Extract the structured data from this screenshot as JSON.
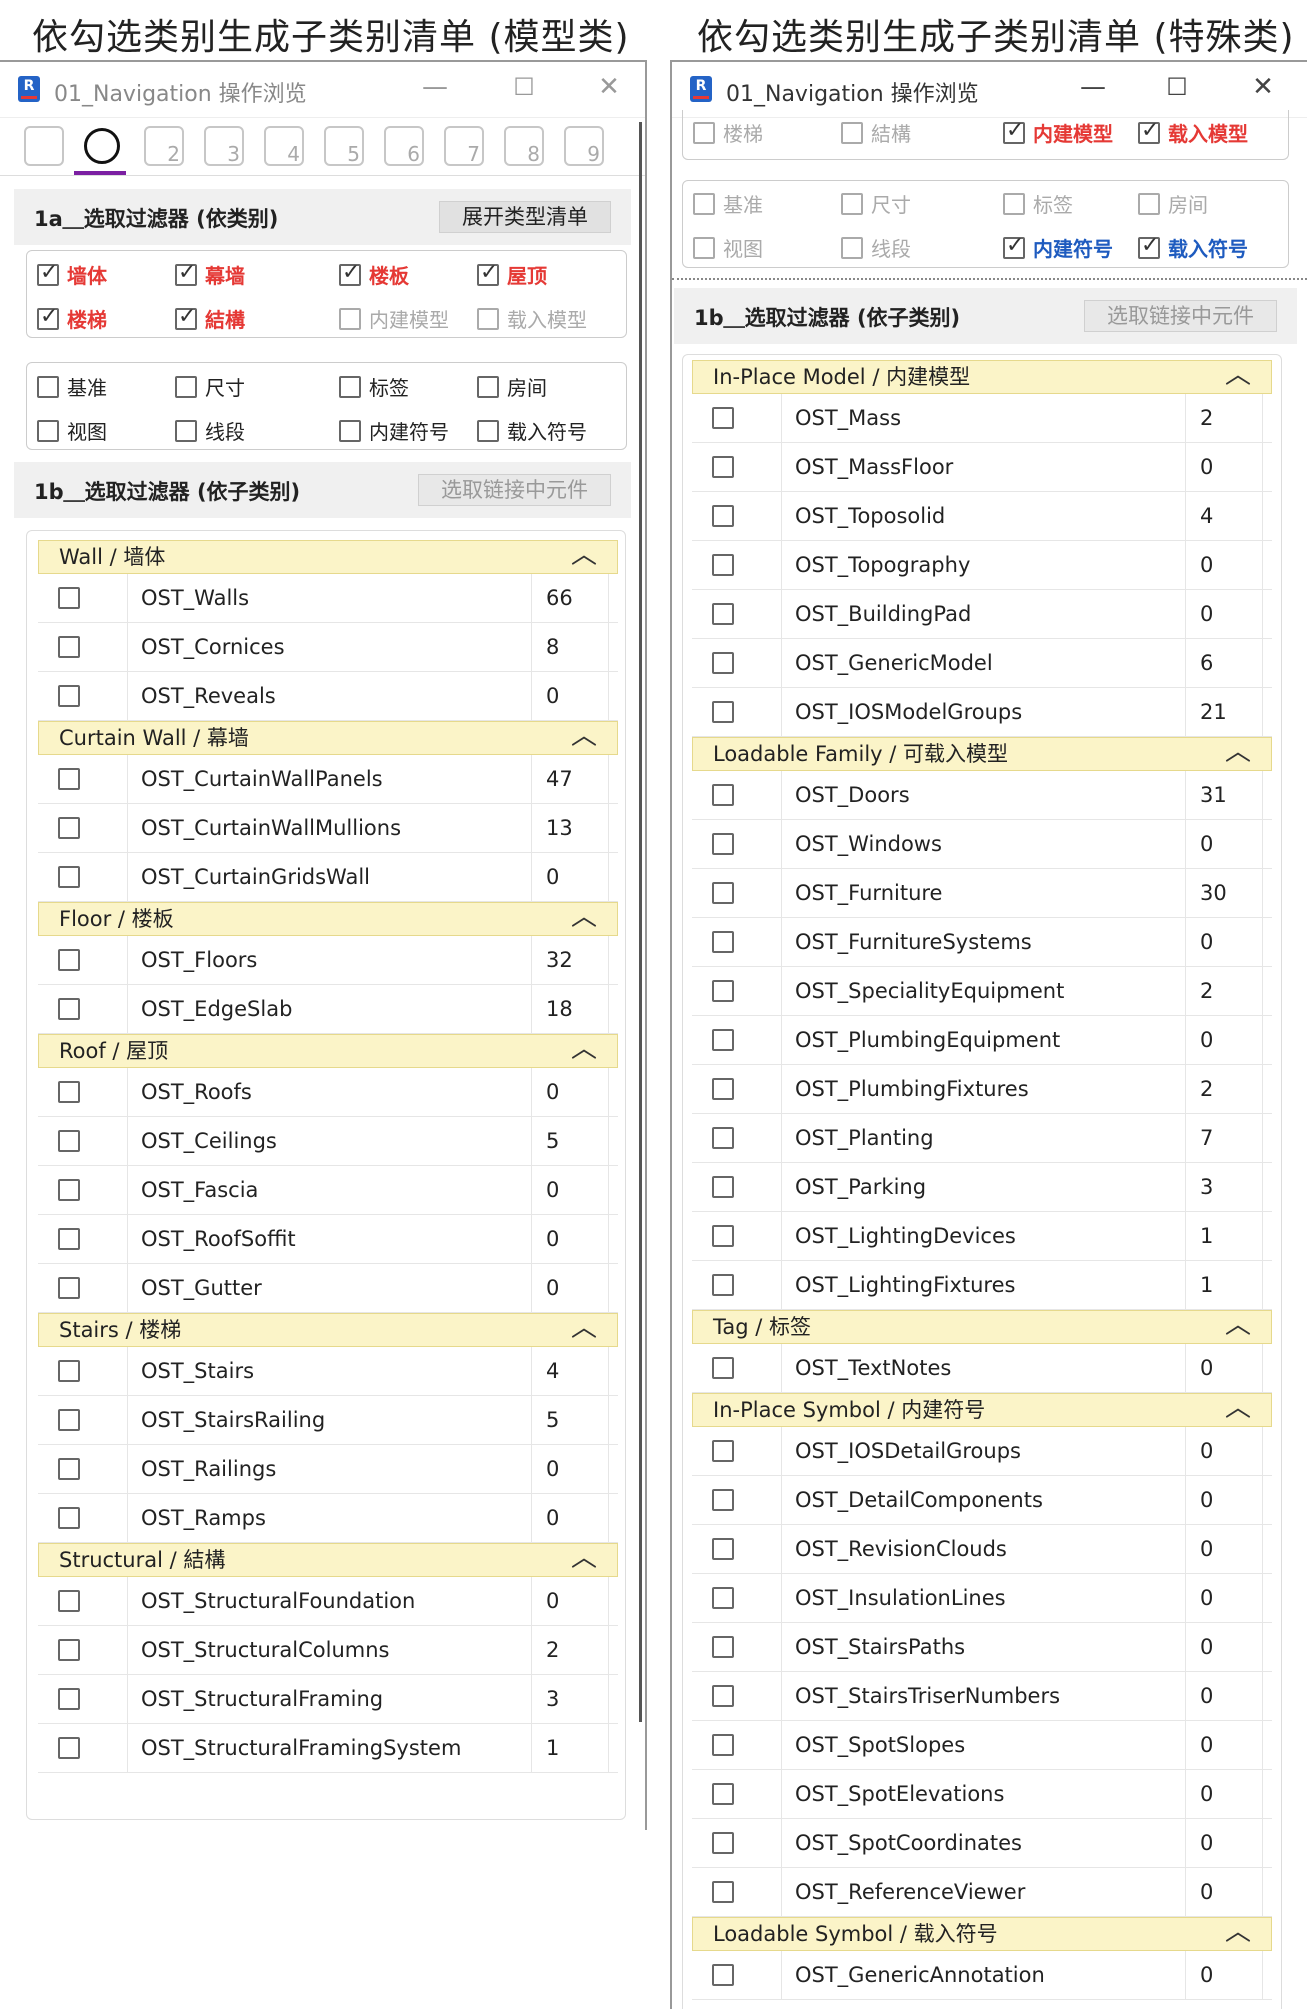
{
  "titles": {
    "left": "依勾选类别生成子类别清单 (模型类)",
    "right": "依勾选类别生成子类别清单 (特殊类)"
  },
  "window": {
    "title": "01_Navigation 操作浏览",
    "app_icon": "R",
    "min": "—",
    "max": "☐",
    "close": "✕"
  },
  "toolbar": [
    {
      "icon": "tool-1-icon",
      "num": ""
    },
    {
      "icon": "tool-2-icon",
      "num": ""
    },
    {
      "icon": "tool-3-icon",
      "num": "2"
    },
    {
      "icon": "tool-4-icon",
      "num": "3"
    },
    {
      "icon": "tool-5-icon",
      "num": "4"
    },
    {
      "icon": "tool-6-icon",
      "num": "5"
    },
    {
      "icon": "tool-7-icon",
      "num": "6"
    },
    {
      "icon": "tool-8-icon",
      "num": "7"
    },
    {
      "icon": "tool-9-icon",
      "num": "8"
    },
    {
      "icon": "tool-10-icon",
      "num": "9"
    }
  ],
  "sec1a": {
    "label": "1a＿选取过滤器 (依类别)",
    "button": "展开类型清单"
  },
  "sec1b": {
    "label": "1b＿选取过滤器 (依子类别)",
    "button": "选取链接中元件"
  },
  "left_checks_model": [
    {
      "label": "墙体",
      "checked": true,
      "style": "red"
    },
    {
      "label": "幕墙",
      "checked": true,
      "style": "red"
    },
    {
      "label": "楼板",
      "checked": true,
      "style": "red"
    },
    {
      "label": "屋顶",
      "checked": true,
      "style": "red"
    },
    {
      "label": "楼梯",
      "checked": true,
      "style": "red"
    },
    {
      "label": "結構",
      "checked": true,
      "style": "red"
    },
    {
      "label": "内建模型",
      "checked": false,
      "style": "dim"
    },
    {
      "label": "载入模型",
      "checked": false,
      "style": "dim"
    }
  ],
  "left_checks_annot": [
    {
      "label": "基准",
      "checked": false
    },
    {
      "label": "尺寸",
      "checked": false
    },
    {
      "label": "标签",
      "checked": false
    },
    {
      "label": "房间",
      "checked": false
    },
    {
      "label": "视图",
      "checked": false
    },
    {
      "label": "线段",
      "checked": false
    },
    {
      "label": "内建符号",
      "checked": false
    },
    {
      "label": "载入符号",
      "checked": false
    }
  ],
  "right_checks_model": [
    {
      "label": "楼梯",
      "checked": false,
      "style": "dim"
    },
    {
      "label": "結構",
      "checked": false,
      "style": "dim"
    },
    {
      "label": "内建模型",
      "checked": true,
      "style": "red"
    },
    {
      "label": "载入模型",
      "checked": true,
      "style": "red"
    }
  ],
  "right_checks_annot": [
    {
      "label": "基准",
      "checked": false,
      "style": "dim"
    },
    {
      "label": "尺寸",
      "checked": false,
      "style": "dim"
    },
    {
      "label": "标签",
      "checked": false,
      "style": "dim"
    },
    {
      "label": "房间",
      "checked": false,
      "style": "dim"
    },
    {
      "label": "视图",
      "checked": false,
      "style": "dim"
    },
    {
      "label": "线段",
      "checked": false,
      "style": "dim"
    },
    {
      "label": "内建符号",
      "checked": true,
      "style": "blue"
    },
    {
      "label": "载入符号",
      "checked": true,
      "style": "blue"
    }
  ],
  "left_list": [
    {
      "cat": "Wall / 墙体",
      "rows": [
        [
          "OST_Walls",
          "66"
        ],
        [
          "OST_Cornices",
          "8"
        ],
        [
          "OST_Reveals",
          "0"
        ]
      ]
    },
    {
      "cat": "Curtain Wall / 幕墙",
      "rows": [
        [
          "OST_CurtainWallPanels",
          "47"
        ],
        [
          "OST_CurtainWallMullions",
          "13"
        ],
        [
          "OST_CurtainGridsWall",
          "0"
        ]
      ]
    },
    {
      "cat": "Floor / 楼板",
      "rows": [
        [
          "OST_Floors",
          "32"
        ],
        [
          "OST_EdgeSlab",
          "18"
        ]
      ]
    },
    {
      "cat": "Roof / 屋顶",
      "rows": [
        [
          "OST_Roofs",
          "0"
        ],
        [
          "OST_Ceilings",
          "5"
        ],
        [
          "OST_Fascia",
          "0"
        ],
        [
          "OST_RoofSoffit",
          "0"
        ],
        [
          "OST_Gutter",
          "0"
        ]
      ]
    },
    {
      "cat": "Stairs / 楼梯",
      "rows": [
        [
          "OST_Stairs",
          "4"
        ],
        [
          "OST_StairsRailing",
          "5"
        ],
        [
          "OST_Railings",
          "0"
        ],
        [
          "OST_Ramps",
          "0"
        ]
      ]
    },
    {
      "cat": "Structural / 結構",
      "rows": [
        [
          "OST_StructuralFoundation",
          "0"
        ],
        [
          "OST_StructuralColumns",
          "2"
        ],
        [
          "OST_StructuralFraming",
          "3"
        ],
        [
          "OST_StructuralFramingSystem",
          "1"
        ]
      ]
    }
  ],
  "right_list": [
    {
      "cat": "In-Place Model / 内建模型",
      "rows": [
        [
          "OST_Mass",
          "2"
        ],
        [
          "OST_MassFloor",
          "0"
        ],
        [
          "OST_Toposolid",
          "4"
        ],
        [
          "OST_Topography",
          "0"
        ],
        [
          "OST_BuildingPad",
          "0"
        ],
        [
          "OST_GenericModel",
          "6"
        ],
        [
          "OST_IOSModelGroups",
          "21"
        ]
      ]
    },
    {
      "cat": "Loadable Family / 可载入模型",
      "rows": [
        [
          "OST_Doors",
          "31"
        ],
        [
          "OST_Windows",
          "0"
        ],
        [
          "OST_Furniture",
          "30"
        ],
        [
          "OST_FurnitureSystems",
          "0"
        ],
        [
          "OST_SpecialityEquipment",
          "2"
        ],
        [
          "OST_PlumbingEquipment",
          "0"
        ],
        [
          "OST_PlumbingFixtures",
          "2"
        ],
        [
          "OST_Planting",
          "7"
        ],
        [
          "OST_Parking",
          "3"
        ],
        [
          "OST_LightingDevices",
          "1"
        ],
        [
          "OST_LightingFixtures",
          "1"
        ]
      ]
    },
    {
      "cat": "Tag / 标签",
      "rows": [
        [
          "OST_TextNotes",
          "0"
        ]
      ]
    },
    {
      "cat": "In-Place Symbol / 内建符号",
      "rows": [
        [
          "OST_IOSDetailGroups",
          "0"
        ],
        [
          "OST_DetailComponents",
          "0"
        ],
        [
          "OST_RevisionClouds",
          "0"
        ],
        [
          "OST_InsulationLines",
          "0"
        ],
        [
          "OST_StairsPaths",
          "0"
        ],
        [
          "OST_StairsTriserNumbers",
          "0"
        ],
        [
          "OST_SpotSlopes",
          "0"
        ],
        [
          "OST_SpotElevations",
          "0"
        ],
        [
          "OST_SpotCoordinates",
          "0"
        ],
        [
          "OST_ReferenceViewer",
          "0"
        ]
      ]
    },
    {
      "cat": "Loadable Symbol / 载入符号",
      "rows": [
        [
          "OST_GenericAnnotation",
          "0"
        ]
      ]
    }
  ],
  "colors": {
    "red": "#e53935",
    "blue": "#1e5bbf",
    "cat_bg": "#fbf4c8",
    "accent": "#7b1fa2"
  },
  "chevron": "︿"
}
